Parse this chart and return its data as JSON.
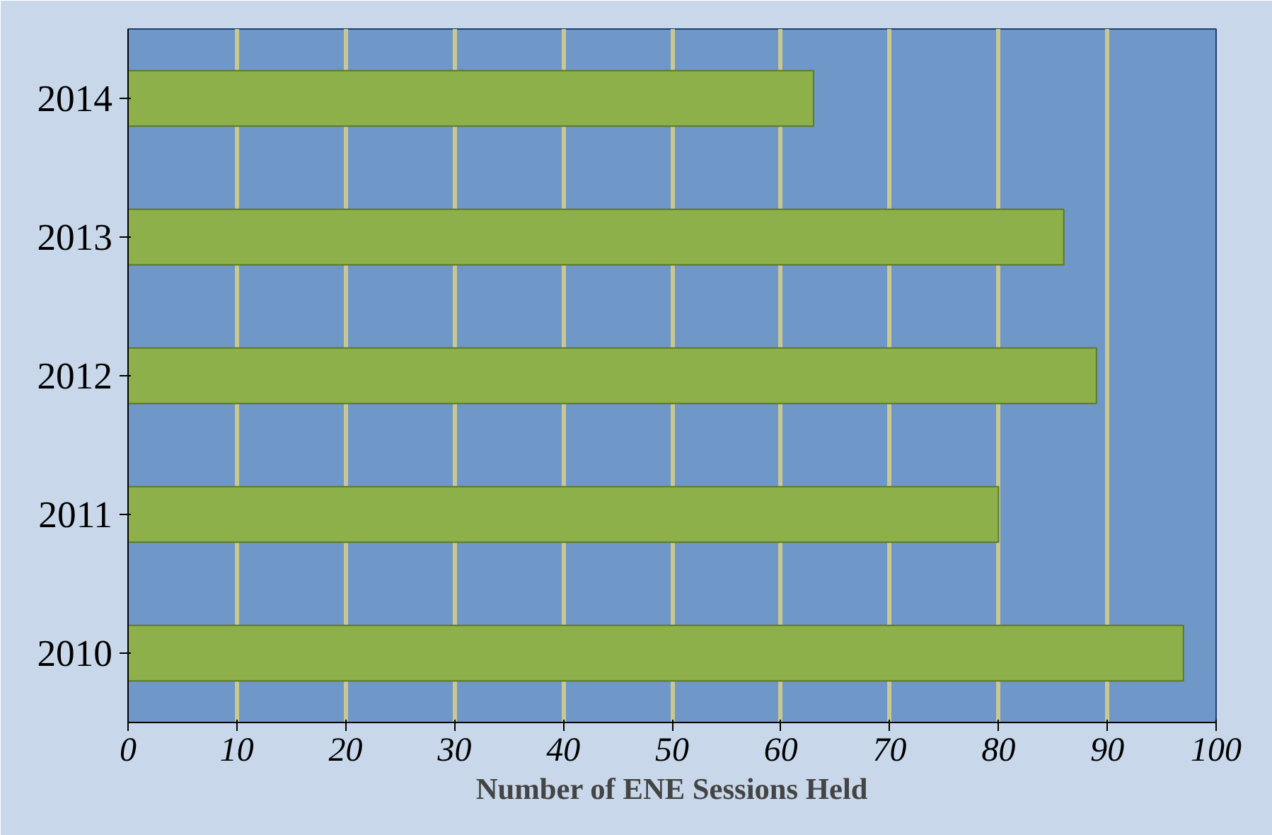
{
  "chart_data": {
    "type": "bar",
    "orientation": "horizontal",
    "xlabel": "Number of ENE Sessions Held",
    "categories": [
      "2014",
      "2013",
      "2012",
      "2011",
      "2010"
    ],
    "values": [
      63,
      86,
      89,
      80,
      97
    ],
    "color": "#8db04a",
    "xlim": [
      0,
      100
    ],
    "xticks": [
      0,
      10,
      20,
      30,
      40,
      50,
      60,
      70,
      80,
      90,
      100
    ],
    "grid": "x"
  }
}
